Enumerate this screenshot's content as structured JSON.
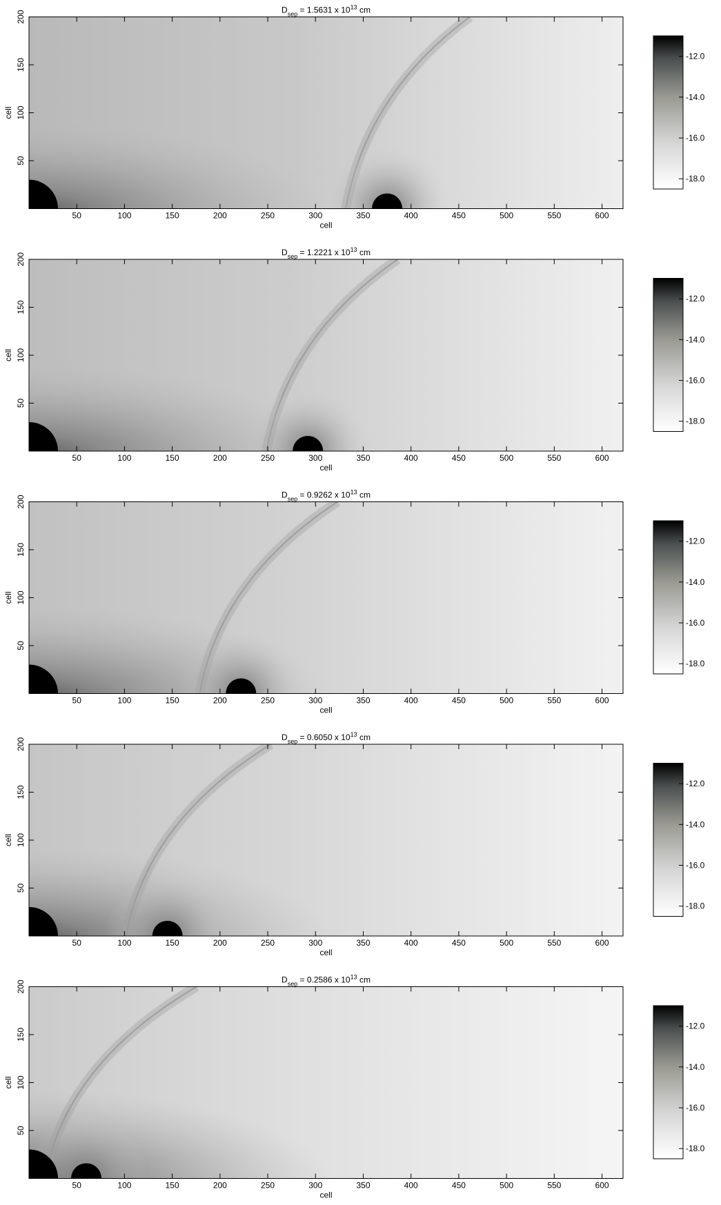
{
  "chart_data": [
    {
      "type": "heatmap",
      "title": [
        "D",
        "sep",
        " = 1.5631 x 10",
        "13",
        " cm"
      ],
      "xlabel": "cell",
      "ylabel": "cell",
      "xlim": [
        0,
        622
      ],
      "ylim": [
        0,
        200
      ],
      "xticks": [
        50,
        100,
        150,
        200,
        250,
        300,
        350,
        400,
        450,
        500,
        550,
        600
      ],
      "yticks": [
        50,
        100,
        150,
        200
      ],
      "colorbar": {
        "lim": [
          -18.5,
          -11
        ],
        "ticks": [
          {
            "value": -12,
            "label": "-12.0"
          },
          {
            "value": -14,
            "label": "-14.0"
          },
          {
            "value": -16,
            "label": "-16.0"
          },
          {
            "value": -18,
            "label": "-18.0"
          }
        ]
      }
    },
    {
      "type": "heatmap",
      "title": [
        "D",
        "sep",
        " = 1.2221 x 10",
        "13",
        " cm"
      ],
      "xlabel": "cell",
      "ylabel": "cell",
      "xlim": [
        0,
        622
      ],
      "ylim": [
        0,
        200
      ],
      "xticks": [
        50,
        100,
        150,
        200,
        250,
        300,
        350,
        400,
        450,
        500,
        550,
        600
      ],
      "yticks": [
        50,
        100,
        150,
        200
      ],
      "colorbar": {
        "lim": [
          -18.5,
          -11
        ],
        "ticks": [
          {
            "value": -12,
            "label": "-12.0"
          },
          {
            "value": -14,
            "label": "-14.0"
          },
          {
            "value": -16,
            "label": "-16.0"
          },
          {
            "value": -18,
            "label": "-18.0"
          }
        ]
      }
    },
    {
      "type": "heatmap",
      "title": [
        "D",
        "sep",
        " = 0.9262 x 10",
        "13",
        " cm"
      ],
      "xlabel": "cell",
      "ylabel": "cell",
      "xlim": [
        0,
        622
      ],
      "ylim": [
        0,
        200
      ],
      "xticks": [
        50,
        100,
        150,
        200,
        250,
        300,
        350,
        400,
        450,
        500,
        550,
        600
      ],
      "yticks": [
        50,
        100,
        150,
        200
      ],
      "colorbar": {
        "lim": [
          -18.5,
          -11
        ],
        "ticks": [
          {
            "value": -12,
            "label": "-12.0"
          },
          {
            "value": -14,
            "label": "-14.0"
          },
          {
            "value": -16,
            "label": "-16.0"
          },
          {
            "value": -18,
            "label": "-18.0"
          }
        ]
      }
    },
    {
      "type": "heatmap",
      "title": [
        "D",
        "sep",
        " = 0.6050 x 10",
        "13",
        " cm"
      ],
      "xlabel": "cell",
      "ylabel": "cell",
      "xlim": [
        0,
        622
      ],
      "ylim": [
        0,
        200
      ],
      "xticks": [
        50,
        100,
        150,
        200,
        250,
        300,
        350,
        400,
        450,
        500,
        550,
        600
      ],
      "yticks": [
        50,
        100,
        150,
        200
      ],
      "colorbar": {
        "lim": [
          -18.5,
          -11
        ],
        "ticks": [
          {
            "value": -12,
            "label": "-12.0"
          },
          {
            "value": -14,
            "label": "-14.0"
          },
          {
            "value": -16,
            "label": "-16.0"
          },
          {
            "value": -18,
            "label": "-18.0"
          }
        ]
      }
    },
    {
      "type": "heatmap",
      "title": [
        "D",
        "sep",
        " = 0.2586 x 10",
        "13",
        " cm"
      ],
      "xlabel": "cell",
      "ylabel": "cell",
      "xlim": [
        0,
        622
      ],
      "ylim": [
        0,
        200
      ],
      "xticks": [
        50,
        100,
        150,
        200,
        250,
        300,
        350,
        400,
        450,
        500,
        550,
        600
      ],
      "yticks": [
        50,
        100,
        150,
        200
      ],
      "colorbar": {
        "lim": [
          -18.5,
          -11
        ],
        "ticks": [
          {
            "value": -12,
            "label": "-12.0"
          },
          {
            "value": -14,
            "label": "-14.0"
          },
          {
            "value": -16,
            "label": "-16.0"
          },
          {
            "value": -18,
            "label": "-18.0"
          }
        ]
      }
    }
  ]
}
